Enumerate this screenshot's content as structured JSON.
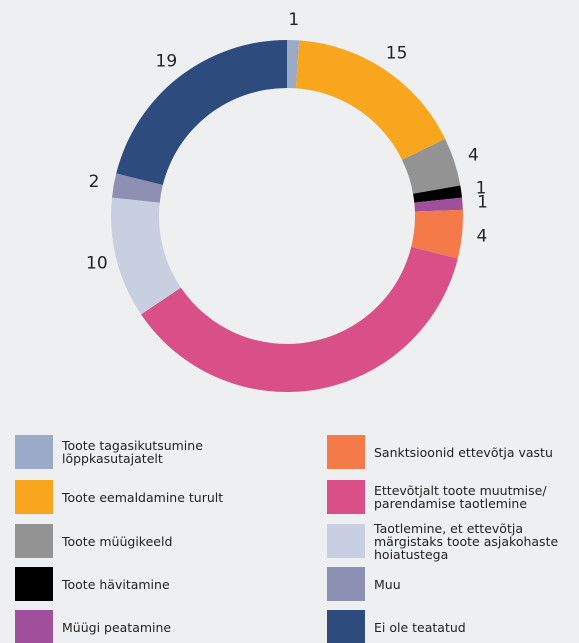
{
  "chart_data": {
    "type": "pie",
    "donut": true,
    "categories": [
      "Toote tagasikutsumine lõppkasutajatelt",
      "Toote eemaldamine turult",
      "Toote müügikeeld",
      "Toote hävitamine",
      "Müügi peatamine",
      "Sanktsioonid ettevõtja vastu",
      "Ettevõtjalt toote muutmise/ parendamise taotlemine",
      "Taotlemine, et ettevõtja märgistaks toote asjakohaste hoiatustega",
      "Muu",
      "Ei ole teatatud"
    ],
    "values": [
      1,
      15,
      4,
      1,
      1,
      4,
      33,
      10,
      2,
      19
    ],
    "colors": [
      "#9aaac8",
      "#f9a61f",
      "#939393",
      "#000000",
      "#a0509a",
      "#f47a4a",
      "#d94f87",
      "#c8cfe0",
      "#8d8fb3",
      "#2e4b7e"
    ]
  }
}
